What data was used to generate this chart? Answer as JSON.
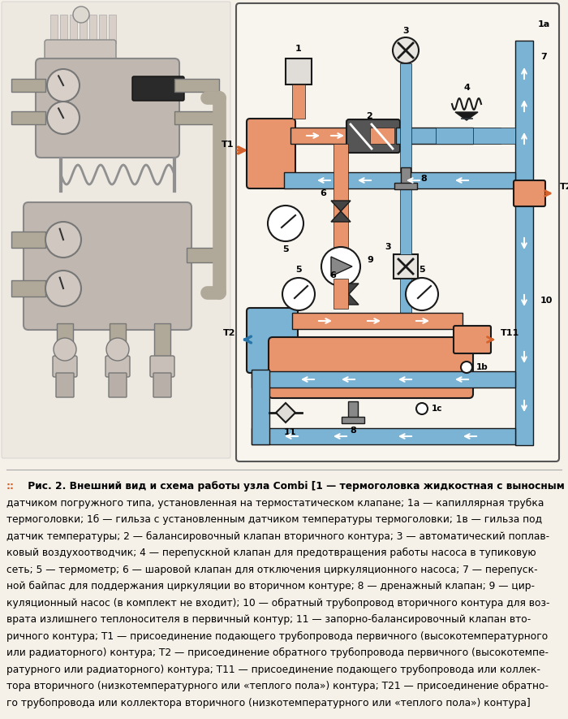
{
  "bg_color": "#f5f0e8",
  "orange_color": "#e8956d",
  "blue_color": "#7ab3d4",
  "dark_orange": "#d4622a",
  "dark_blue": "#2874a6",
  "caption_lines": [
    "::  Рис. 2. Внешний вид и схема работы узла Combi [1 — термоголовка жидкостная с выносным",
    "датчиком погружного типа, установленная на термостатическом клапане; 1а — капиллярная трубка",
    "термоголовки; 1б — гильза с установленным датчиком температуры термоголовки; 1в — гильза под",
    "датчик температуры; 2 — балансировочный клапан вторичного контура; 3 — автоматический поплав-",
    "ковый воздухоотводчик; 4 — перепускной клапан для предотвращения работы насоса в тупиковую",
    "сеть; 5 — термометр; 6 — шаровой клапан для отключения циркуляционного насоса; 7 — перепуск-",
    "ной байпас для поддержания циркуляции во вторичном контуре; 8 — дренажный клапан; 9 — цир-",
    "куляционный насос (в комплект не входит); 10 — обратный трубопровод вторичного контура для воз-",
    "врата излишнего теплоносителя в первичный контур; 11 — запорно-балансировочный клапан вто-",
    "ричного контура; T1 — присоединение подающего трубопровода первичного (высокотемпературного",
    "или радиаторного) контура; T2 — присоединение обратного трубопровода первичного (высокотемпе-",
    "ратурного или радиаторного) контура; T11 — присоединение подающего трубопровода или коллек-",
    "тора вторичного (низкотемпературного или «теплого пола») контура; T21 — присоединение обратно-",
    "го трубопровода или коллектора вторичного (низкотемпературного или «теплого пола») контура]"
  ]
}
